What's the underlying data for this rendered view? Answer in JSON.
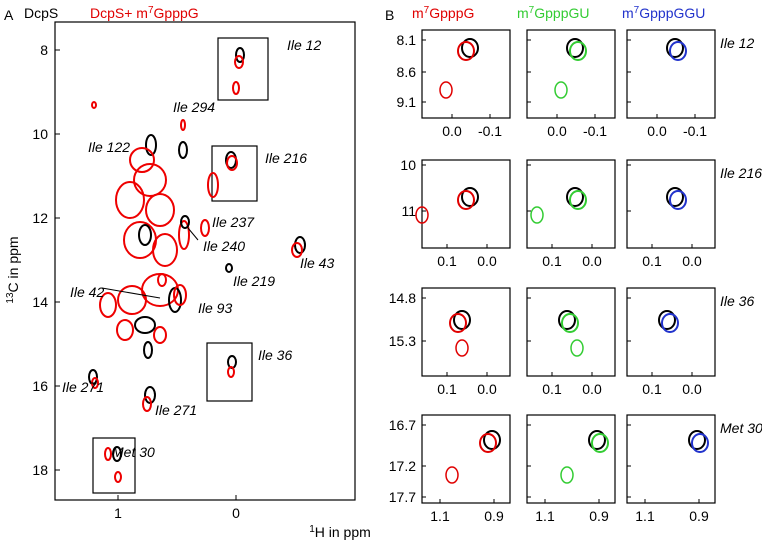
{
  "panel_a": {
    "letter": "A",
    "legend_black": "DcpS",
    "legend_red": {
      "prefix": "DcpS+ m",
      "sup": "7",
      "suffix": "GpppG"
    },
    "y_label": {
      "sup": "13",
      "base": "C in ppm"
    },
    "yticks": [
      "8",
      "10",
      "12",
      "14",
      "16",
      "18"
    ],
    "xticks": [
      "1",
      "0"
    ],
    "annotations": [
      "Ile 12",
      "Ile 294",
      "Ile 122",
      "Ile 216",
      "Ile 237",
      "Ile 240",
      "Ile 219",
      "Ile 43",
      "Ile 42",
      "Ile 93",
      "Ile 36",
      "Ile 271",
      "Ile 271",
      "Met 30"
    ]
  },
  "x_label": {
    "sup": "1",
    "base": "H in ppm"
  },
  "panel_b": {
    "letter": "B",
    "columns": [
      {
        "prefix": "m",
        "sup": "7",
        "suffix": "GpppG"
      },
      {
        "prefix": "m",
        "sup": "7",
        "suffix": "GpppGU"
      },
      {
        "prefix": "m",
        "sup": "7",
        "suffix": "GpppGGU"
      }
    ],
    "rows": [
      {
        "label": "Ile 12",
        "yticks": [
          "8.1",
          "8.6",
          "9.1"
        ],
        "xticks": [
          "0.0",
          "-0.1"
        ]
      },
      {
        "label": "Ile 216",
        "yticks": [
          "10",
          "11"
        ],
        "xticks": [
          "0.1",
          "0.0"
        ]
      },
      {
        "label": "Ile 36",
        "yticks": [
          "14.8",
          "15.3"
        ],
        "xticks": [
          "0.1",
          "0.0"
        ]
      },
      {
        "label": "Met 30",
        "yticks": [
          "16.7",
          "17.2",
          "17.7"
        ],
        "xticks": [
          "1.1",
          "0.9"
        ]
      }
    ]
  }
}
